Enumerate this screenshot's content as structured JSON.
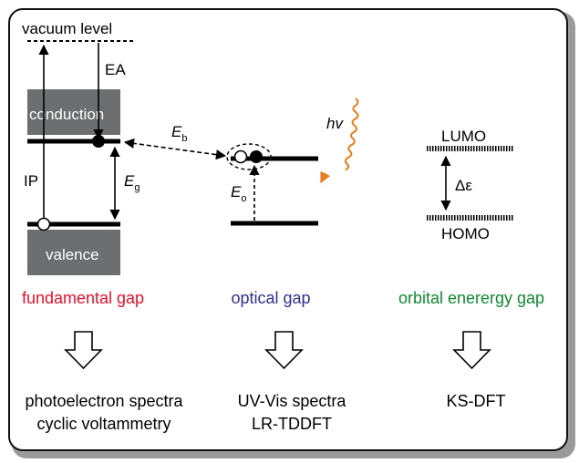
{
  "colors": {
    "fundamental": "#e8112d",
    "optical": "#2e3192",
    "orbital": "#118a32",
    "hv": "#e87d1e",
    "band_fill": "#6d6e70"
  },
  "left_panel": {
    "vacuum_label": "vacuum level",
    "ea_label": "EA",
    "ip_label": "IP",
    "conduction_label": "conduction",
    "valence_label": "valence",
    "eg_main": "E",
    "eg_sub": "g"
  },
  "binding": {
    "eb_main": "E",
    "eb_sub": "b"
  },
  "middle_panel": {
    "eo_main": "E",
    "eo_sub": "o",
    "hv_label": "hv"
  },
  "right_panel": {
    "lumo_label": "LUMO",
    "homo_label": "HOMO",
    "delta_label": "Δε"
  },
  "captions": {
    "fundamental": "fundamental gap",
    "optical": "optical gap",
    "orbital": "orbital enerergy gap"
  },
  "methods": {
    "fundamental_line1": "photoelectron spectra",
    "fundamental_line2": "cyclic voltammetry",
    "optical_line1": "UV-Vis spectra",
    "optical_line2": "LR-TDDFT",
    "orbital_line1": "KS-DFT"
  }
}
